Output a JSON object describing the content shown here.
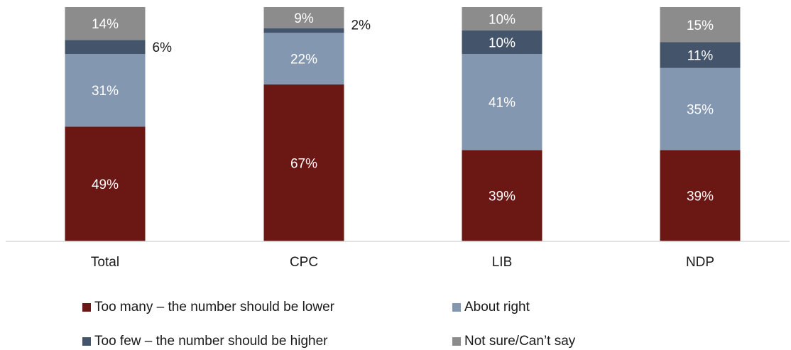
{
  "chart_data": {
    "type": "bar",
    "stacked": true,
    "normalized": true,
    "categories": [
      "Total",
      "CPC",
      "LIB",
      "NDP"
    ],
    "series": [
      {
        "name": "Too many – the number should be lower",
        "color": "#6b1714",
        "label_color": "#ffffff",
        "values": [
          49,
          67,
          39,
          39
        ]
      },
      {
        "name": "About right",
        "color": "#8497b0",
        "label_color": "#ffffff",
        "values": [
          31,
          22,
          41,
          35
        ]
      },
      {
        "name": "Too few – the number should be higher",
        "color": "#44546a",
        "label_color": "#ffffff",
        "values": [
          6,
          2,
          10,
          11
        ]
      },
      {
        "name": "Not sure/Can’t say",
        "color": "#8c8c8c",
        "label_color": "#ffffff",
        "values": [
          14,
          9,
          10,
          15
        ]
      }
    ],
    "data_labels": [
      [
        "49%",
        "67%",
        "39%",
        "39%"
      ],
      [
        "31%",
        "22%",
        "41%",
        "35%"
      ],
      [
        "6%",
        "2%",
        "10%",
        "11%"
      ],
      [
        "14%",
        "9%",
        "10%",
        "15%"
      ]
    ],
    "ylim": [
      0,
      100
    ],
    "grid": false,
    "legend_position": "bottom"
  }
}
